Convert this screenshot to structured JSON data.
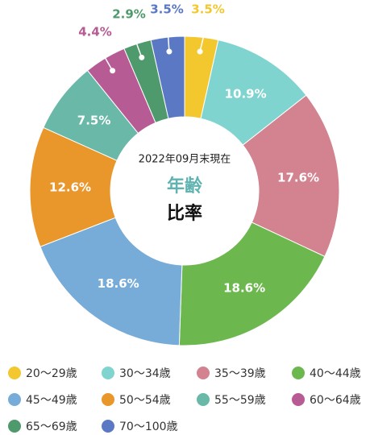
{
  "chart_data": {
    "type": "pie",
    "donut": true,
    "subtitle": "2022年09月末現在",
    "title": "年齢",
    "title2": "比率",
    "categories": [
      "20～29歳",
      "30～34歳",
      "35～39歳",
      "40～44歳",
      "45～49歳",
      "50～54歳",
      "55～59歳",
      "60～64歳",
      "65～69歳",
      "70～100歳"
    ],
    "values": [
      3.5,
      10.9,
      17.6,
      18.6,
      18.6,
      12.6,
      7.5,
      4.4,
      2.9,
      3.5
    ],
    "value_labels": [
      "3.5%",
      "10.9%",
      "17.6%",
      "18.6%",
      "18.6%",
      "12.6%",
      "7.5%",
      "4.4%",
      "2.9%",
      "3.5%"
    ],
    "colors": [
      "#f2c82e",
      "#80d4cf",
      "#d3828f",
      "#6cb84f",
      "#77acd8",
      "#e9962a",
      "#6ab8a8",
      "#b65b94",
      "#4f9a6c",
      "#5a78c3"
    ]
  }
}
